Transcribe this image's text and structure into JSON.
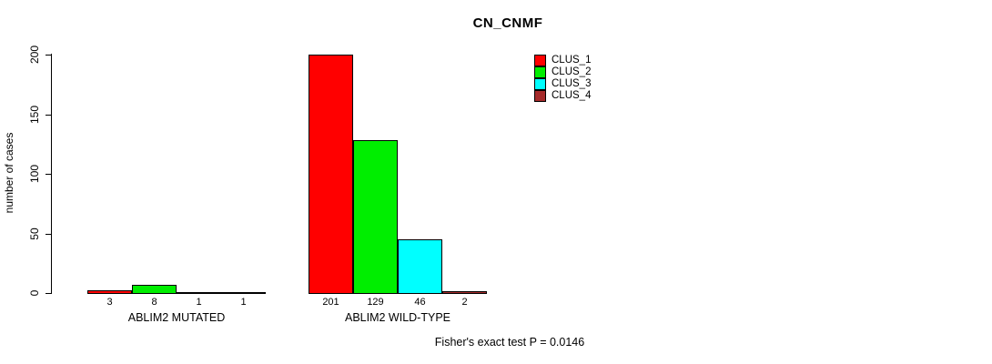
{
  "chart_data": {
    "type": "bar",
    "title": "CN_CNMF",
    "xlabel": "",
    "ylabel": "number of cases",
    "ylim": [
      0,
      200
    ],
    "yticks": [
      0,
      50,
      100,
      150,
      200
    ],
    "grid": false,
    "legend_position": "top-right",
    "categories": [
      "ABLIM2 MUTATED",
      "ABLIM2 WILD-TYPE"
    ],
    "series": [
      {
        "name": "CLUS_1",
        "color": "#ff0000",
        "values": [
          3,
          201
        ]
      },
      {
        "name": "CLUS_2",
        "color": "#00ee00",
        "values": [
          8,
          129
        ]
      },
      {
        "name": "CLUS_3",
        "color": "#00ffff",
        "values": [
          1,
          46
        ]
      },
      {
        "name": "CLUS_4",
        "color": "#a52a2a",
        "values": [
          1,
          2
        ]
      }
    ],
    "bar_value_labels": true,
    "annotation": "Fisher's exact test P = 0.0146"
  }
}
